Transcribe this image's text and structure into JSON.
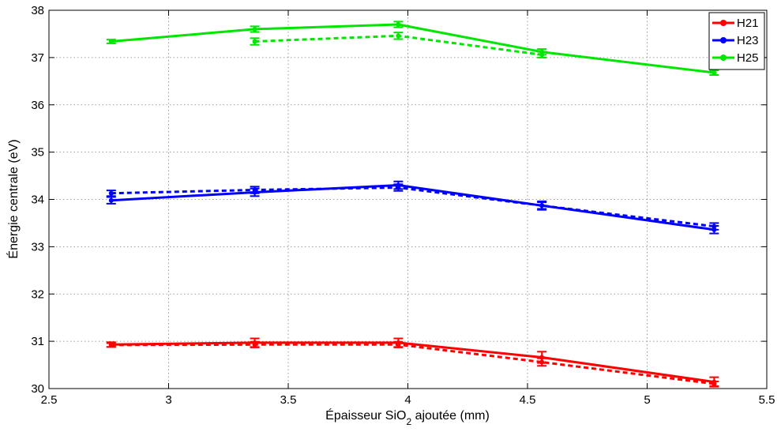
{
  "chart_data": {
    "type": "line",
    "title": "",
    "xlabel_main": "Épaisseur SiO",
    "xlabel_sub": "2",
    "xlabel_rest": " ajoutée (mm)",
    "ylabel": "Énergie centrale (eV)",
    "xlim": [
      2.5,
      5.5
    ],
    "ylim": [
      30,
      38
    ],
    "xticks": [
      2.5,
      3,
      3.5,
      4,
      4.5,
      5,
      5.5
    ],
    "xtick_labels": [
      "2.5",
      "3",
      "3.5",
      "4",
      "4.5",
      "5",
      "5.5"
    ],
    "yticks": [
      30,
      31,
      32,
      33,
      34,
      35,
      36,
      37,
      38
    ],
    "ytick_labels": [
      "30",
      "31",
      "32",
      "33",
      "34",
      "35",
      "36",
      "37",
      "38"
    ],
    "grid": true,
    "legend_position": "top-right",
    "series": [
      {
        "name": "H21",
        "color": "#ff0000",
        "solid": [
          {
            "x": 2.76,
            "y": 30.93,
            "err": 0.05
          },
          {
            "x": 3.36,
            "y": 30.97,
            "err": 0.09
          },
          {
            "x": 3.96,
            "y": 30.97,
            "err": 0.09
          },
          {
            "x": 4.56,
            "y": 30.66,
            "err": 0.12
          },
          {
            "x": 5.28,
            "y": 30.14,
            "err": 0.1
          }
        ],
        "dashed": [
          {
            "x": 2.76,
            "y": 30.92,
            "err": 0.04
          },
          {
            "x": 3.36,
            "y": 30.93,
            "err": 0.06
          },
          {
            "x": 3.96,
            "y": 30.93,
            "err": 0.06
          },
          {
            "x": 4.56,
            "y": 30.56,
            "err": 0.08
          },
          {
            "x": 5.28,
            "y": 30.1,
            "err": 0.05
          }
        ]
      },
      {
        "name": "H23",
        "color": "#0000ff",
        "solid": [
          {
            "x": 2.76,
            "y": 33.98,
            "err": 0.07
          },
          {
            "x": 3.36,
            "y": 34.15,
            "err": 0.08
          },
          {
            "x": 3.96,
            "y": 34.3,
            "err": 0.08
          },
          {
            "x": 4.56,
            "y": 33.87,
            "err": 0.09
          },
          {
            "x": 5.28,
            "y": 33.36,
            "err": 0.08
          }
        ],
        "dashed": [
          {
            "x": 2.76,
            "y": 34.13,
            "err": 0.06
          },
          {
            "x": 3.36,
            "y": 34.2,
            "err": 0.07
          },
          {
            "x": 3.96,
            "y": 34.25,
            "err": 0.07
          },
          {
            "x": 4.56,
            "y": 33.87,
            "err": 0.07
          },
          {
            "x": 5.28,
            "y": 33.43,
            "err": 0.07
          }
        ]
      },
      {
        "name": "H25",
        "color": "#00e600",
        "solid": [
          {
            "x": 2.76,
            "y": 37.34,
            "err": 0.04
          },
          {
            "x": 3.36,
            "y": 37.6,
            "err": 0.06
          },
          {
            "x": 3.96,
            "y": 37.7,
            "err": 0.06
          },
          {
            "x": 4.56,
            "y": 37.12,
            "err": 0.06
          },
          {
            "x": 5.28,
            "y": 36.68,
            "err": 0.05
          }
        ],
        "dashed": [
          {
            "x": 3.36,
            "y": 37.34,
            "err": 0.07
          },
          {
            "x": 3.96,
            "y": 37.46,
            "err": 0.07
          },
          {
            "x": 4.56,
            "y": 37.06,
            "err": 0.06
          }
        ]
      }
    ]
  }
}
